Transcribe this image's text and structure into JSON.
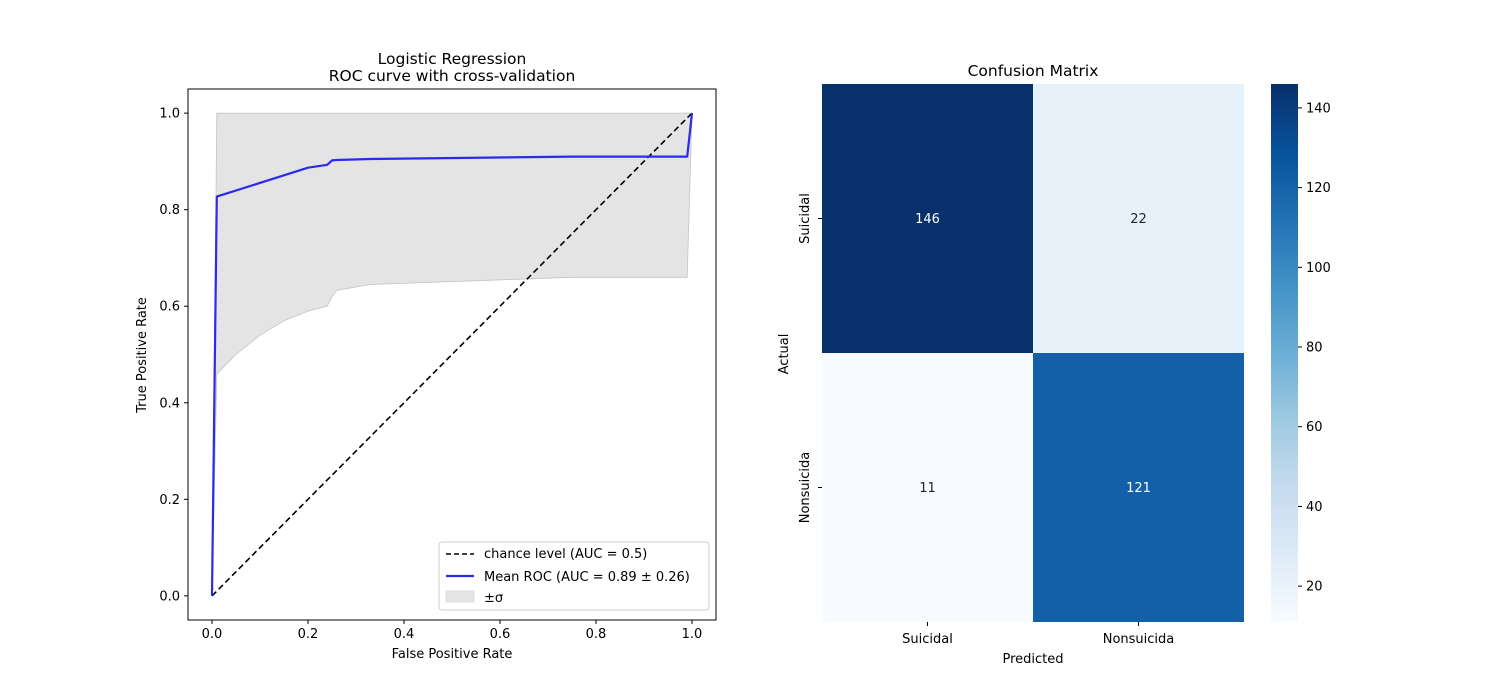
{
  "chart_data": [
    {
      "type": "line",
      "title_line1": "Logistic Regression",
      "title_line2": "ROC curve with cross-validation",
      "xlabel": "False Positive Rate",
      "ylabel": "True Positive Rate",
      "xlim": [
        -0.05,
        1.05
      ],
      "ylim": [
        -0.05,
        1.05
      ],
      "xticks": [
        0.0,
        0.2,
        0.4,
        0.6,
        0.8,
        1.0
      ],
      "xtick_labels": [
        "0.0",
        "0.2",
        "0.4",
        "0.6",
        "0.8",
        "1.0"
      ],
      "yticks": [
        0.0,
        0.2,
        0.4,
        0.6,
        0.8,
        1.0
      ],
      "ytick_labels": [
        "0.0",
        "0.2",
        "0.4",
        "0.6",
        "0.8",
        "1.0"
      ],
      "legend_position": "lower-right",
      "series": [
        {
          "name": "chance level (AUC = 0.5)",
          "style": "dashed",
          "color": "#000000",
          "x": [
            0,
            1
          ],
          "y": [
            0,
            1
          ]
        },
        {
          "name": "Mean ROC (AUC = 0.89 ± 0.26)",
          "style": "solid",
          "color": "#2b2bec",
          "x": [
            0,
            0.01,
            0.2,
            0.24,
            0.25,
            0.26,
            0.33,
            0.75,
            0.99,
            1.0
          ],
          "y": [
            0,
            0.827,
            0.887,
            0.893,
            0.902,
            0.903,
            0.905,
            0.91,
            0.91,
            1.0
          ]
        }
      ],
      "band": {
        "name": "±σ",
        "color": "#bfbfbf",
        "x": [
          0.0,
          0.01,
          0.05,
          0.1,
          0.15,
          0.2,
          0.24,
          0.25,
          0.26,
          0.33,
          0.75,
          0.99,
          1.0
        ],
        "upper": [
          0.0,
          1.0,
          1.0,
          1.0,
          1.0,
          1.0,
          1.0,
          1.0,
          1.0,
          1.0,
          1.0,
          1.0,
          1.0
        ],
        "lower": [
          0.0,
          0.46,
          0.5,
          0.54,
          0.57,
          0.59,
          0.6,
          0.62,
          0.633,
          0.645,
          0.66,
          0.66,
          1.0
        ]
      }
    },
    {
      "type": "heatmap",
      "title": "Confusion Matrix",
      "xlabel": "Predicted",
      "ylabel": "Actual",
      "x_categories": [
        "Suicidal",
        "Nonsuicida"
      ],
      "y_categories": [
        "Suicidal",
        "Nonsuicida"
      ],
      "values": [
        [
          146,
          22
        ],
        [
          11,
          121
        ]
      ],
      "colorbar": {
        "min": 11,
        "max": 146,
        "ticks": [
          20,
          40,
          60,
          80,
          100,
          120,
          140
        ],
        "tick_labels": [
          "20",
          "40",
          "60",
          "80",
          "100",
          "120",
          "140"
        ],
        "colormap": "Blues"
      }
    }
  ]
}
